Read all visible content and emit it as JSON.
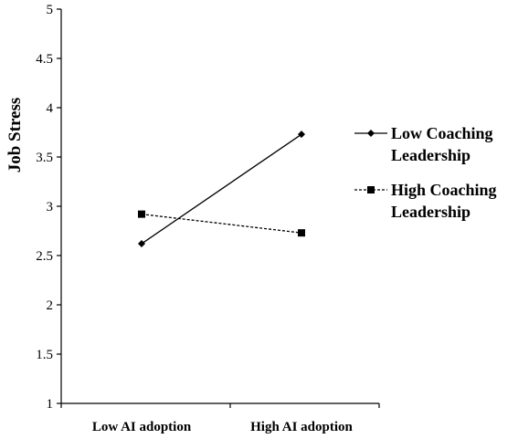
{
  "chart_data": {
    "type": "line",
    "title": "",
    "xlabel": "",
    "ylabel": "Job Stress",
    "ylim": [
      1,
      5
    ],
    "yticks": [
      "1",
      "1.5",
      "2",
      "2.5",
      "3",
      "3.5",
      "4",
      "4.5",
      "5"
    ],
    "categories": [
      "Low AI adoption",
      "High AI adoption"
    ],
    "grid": false,
    "legend_position": "right",
    "series": [
      {
        "name_lines": [
          "Low Coaching",
          "Leadership"
        ],
        "values": [
          2.62,
          3.73
        ],
        "line_style": "solid",
        "marker": "diamond",
        "color": "#000000"
      },
      {
        "name_lines": [
          "High Coaching",
          "Leadership"
        ],
        "values": [
          2.92,
          2.73
        ],
        "line_style": "dashed",
        "marker": "square",
        "color": "#000000"
      }
    ]
  }
}
